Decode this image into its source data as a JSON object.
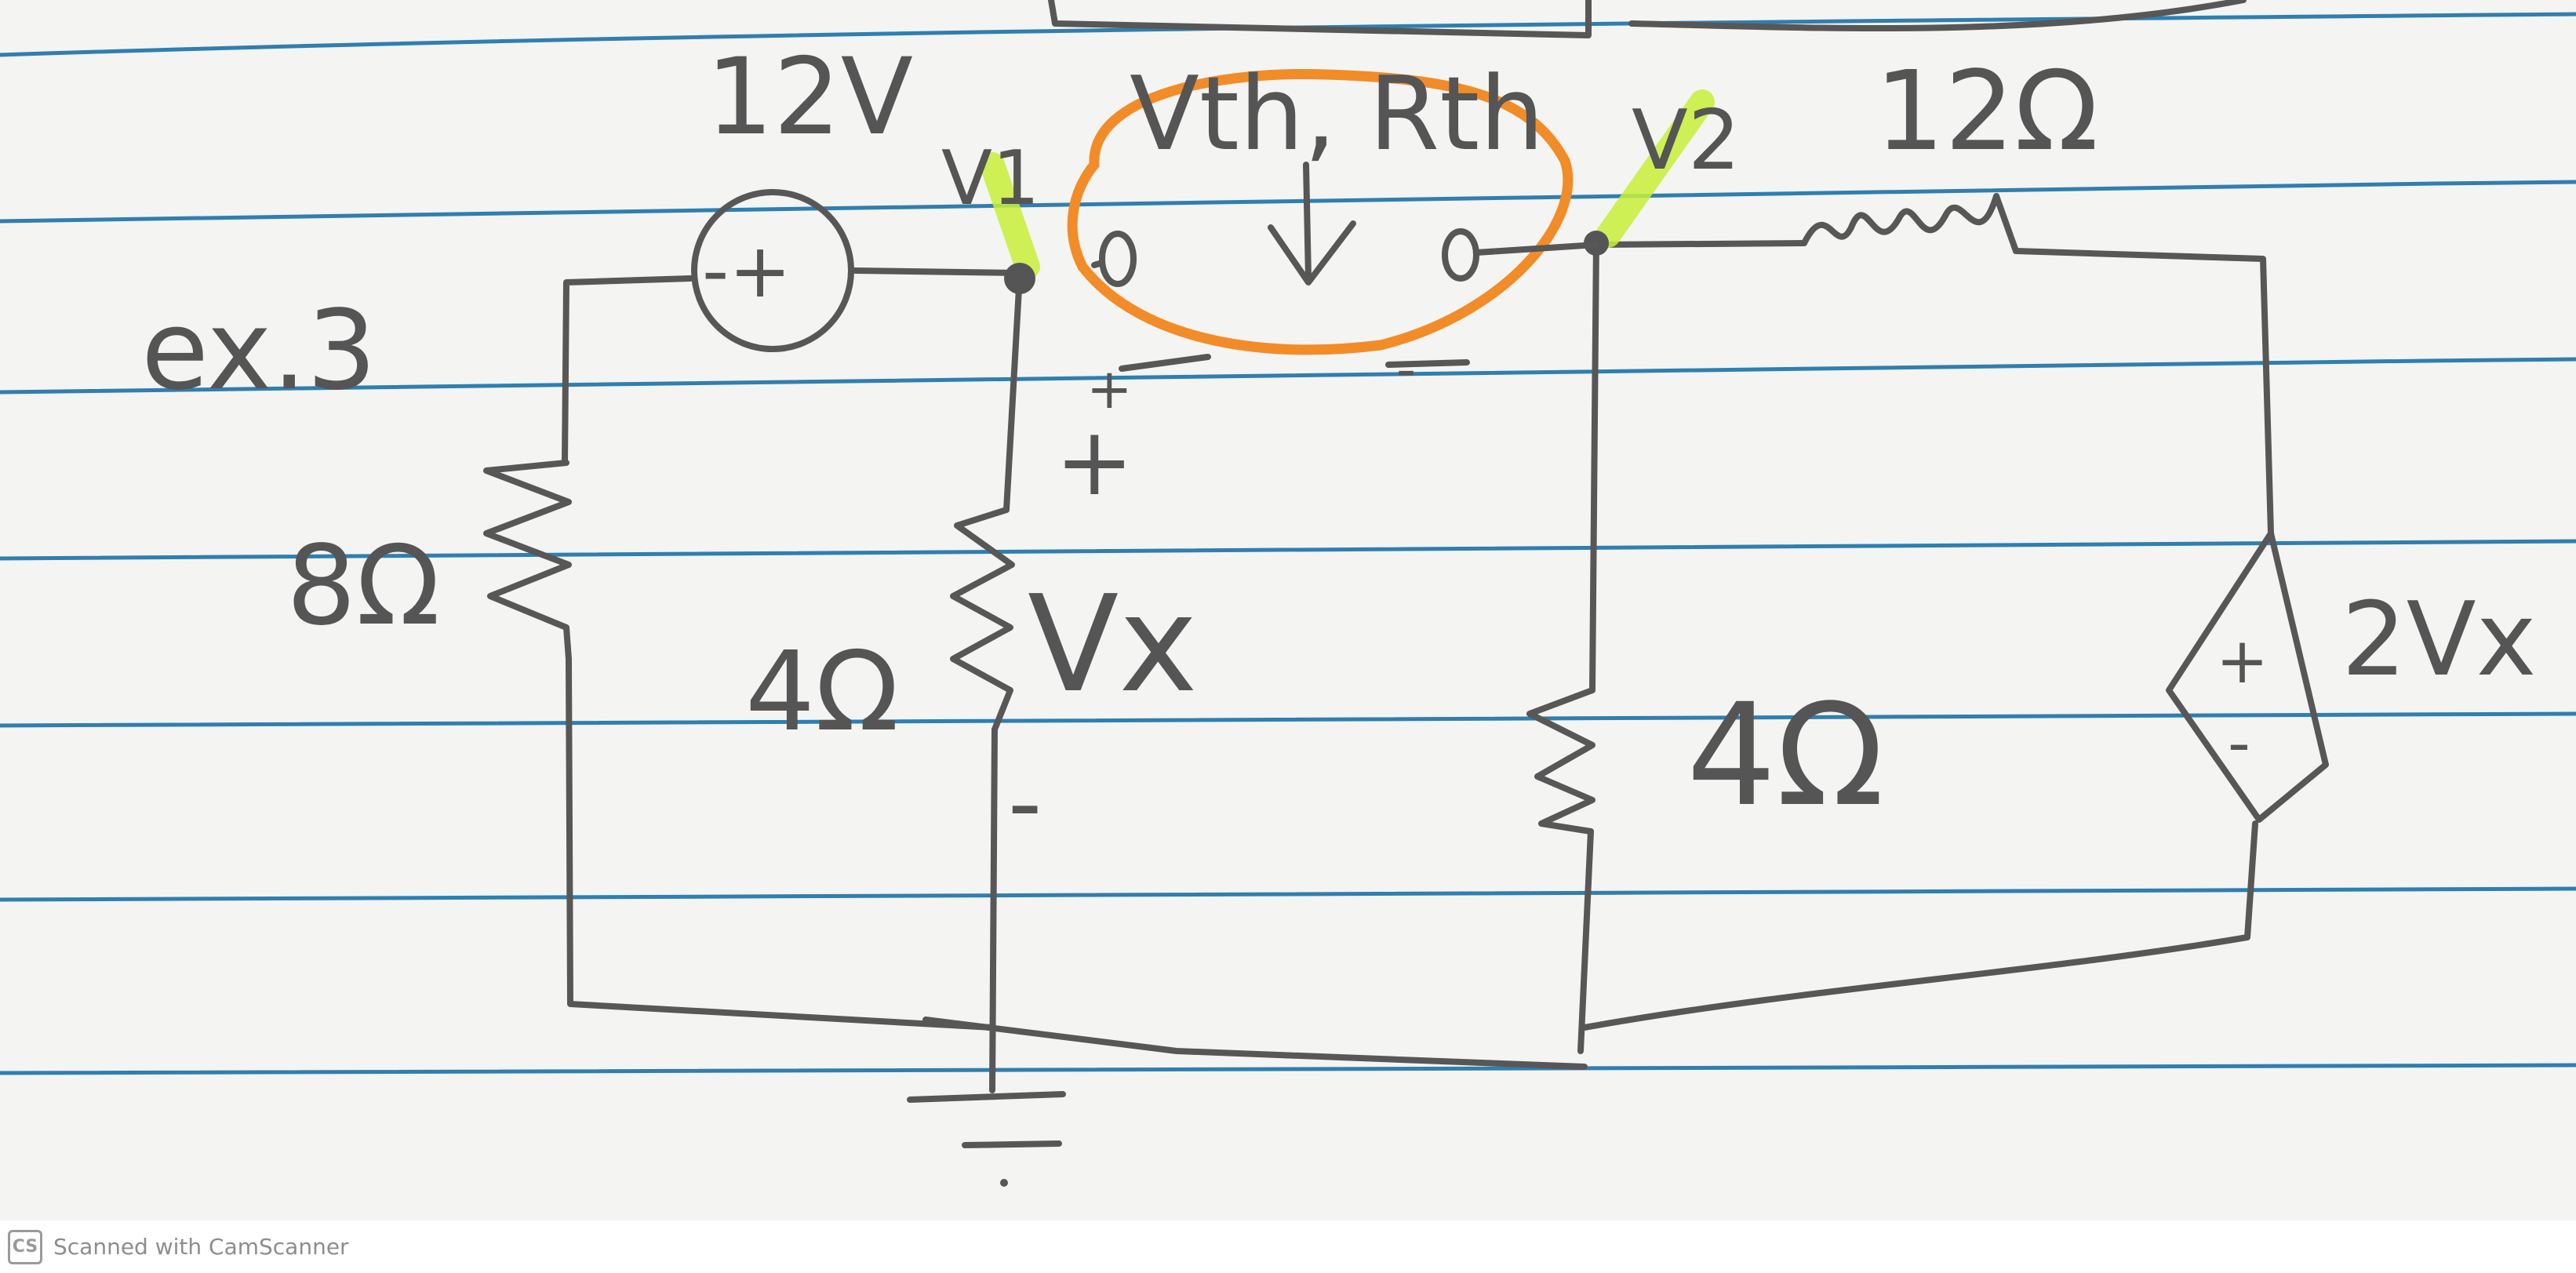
{
  "labels": {
    "example": "ex.3",
    "source_voltage": "12V",
    "source_sign": "-+",
    "node_v1": "V1",
    "node_v2": "V2",
    "thevenin": "Vth, Rth",
    "r_left": "8Ω",
    "r_mid": "4Ω",
    "r_right": "4Ω",
    "r_top": "12Ω",
    "vx": "Vx",
    "vx_plus": "+",
    "vx_minus": "-",
    "dep_plus": "+",
    "dep_minus": "-",
    "dep_value": "2Vx",
    "open_plus": "+",
    "open_minus": "-"
  },
  "footer": {
    "logo": "CS",
    "text": "Scanned with CamScanner"
  },
  "colors": {
    "paper": "#f4f4f2",
    "rule_line": "#2f7fb0",
    "ink": "#575757",
    "orange_marker": "#f28c28",
    "yellow_highlighter": "#c8f03a"
  }
}
